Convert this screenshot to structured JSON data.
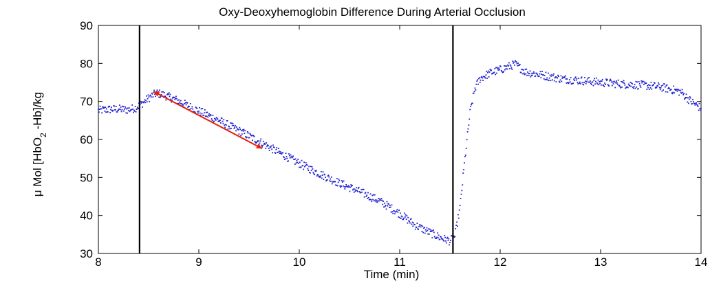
{
  "chart_data": {
    "type": "scatter",
    "title": "Oxy-Deoxyhemoglobin Difference During Arterial Occlusion",
    "xlabel": "Time (min)",
    "ylabel": {
      "prefix": "μ Mol [HbO",
      "subscript": "2",
      "suffix": " -Hb]/kg"
    },
    "xlim": [
      8,
      14
    ],
    "ylim": [
      30,
      90
    ],
    "xticks": [
      "8",
      "9",
      "10",
      "11",
      "12",
      "13",
      "14"
    ],
    "yticks": [
      "30",
      "40",
      "50",
      "60",
      "70",
      "80",
      "90"
    ],
    "grid": false,
    "legend": "none",
    "marker_color": "#1f1fd0",
    "series": [
      {
        "values_description_x": "Time (min)",
        "points": [
          [
            8.0,
            67.6
          ],
          [
            8.1,
            67.9
          ],
          [
            8.2,
            68.0
          ],
          [
            8.3,
            67.8
          ],
          [
            8.38,
            68.4
          ],
          [
            8.45,
            69.8
          ],
          [
            8.52,
            71.3
          ],
          [
            8.58,
            72.2
          ],
          [
            8.65,
            71.7
          ],
          [
            8.75,
            70.7
          ],
          [
            8.85,
            69.4
          ],
          [
            9.0,
            67.5
          ],
          [
            9.2,
            65.0
          ],
          [
            9.4,
            62.3
          ],
          [
            9.6,
            59.5
          ],
          [
            9.8,
            56.5
          ],
          [
            10.0,
            53.7
          ],
          [
            10.2,
            51.0
          ],
          [
            10.4,
            48.5
          ],
          [
            10.6,
            46.3
          ],
          [
            10.8,
            43.8
          ],
          [
            11.0,
            40.5
          ],
          [
            11.15,
            37.5
          ],
          [
            11.3,
            35.5
          ],
          [
            11.4,
            34.2
          ],
          [
            11.5,
            33.3
          ],
          [
            11.55,
            34.5
          ],
          [
            11.6,
            42.0
          ],
          [
            11.65,
            55.0
          ],
          [
            11.7,
            67.0
          ],
          [
            11.75,
            73.5
          ],
          [
            11.8,
            76.0
          ],
          [
            11.9,
            77.5
          ],
          [
            12.0,
            78.3
          ],
          [
            12.1,
            79.3
          ],
          [
            12.15,
            79.8
          ],
          [
            12.25,
            77.8
          ],
          [
            12.4,
            77.0
          ],
          [
            12.6,
            76.0
          ],
          [
            12.8,
            75.5
          ],
          [
            13.0,
            75.0
          ],
          [
            13.2,
            74.6
          ],
          [
            13.4,
            74.3
          ],
          [
            13.6,
            73.8
          ],
          [
            13.8,
            72.5
          ],
          [
            13.9,
            70.0
          ],
          [
            14.0,
            68.2
          ]
        ]
      }
    ],
    "vertical_lines": [
      8.41,
      11.53
    ],
    "vertical_line_color": "#000000",
    "annotation_arrow": {
      "color": "#e8200c",
      "from": [
        8.55,
        72.6
      ],
      "to": [
        9.63,
        57.6
      ]
    }
  }
}
